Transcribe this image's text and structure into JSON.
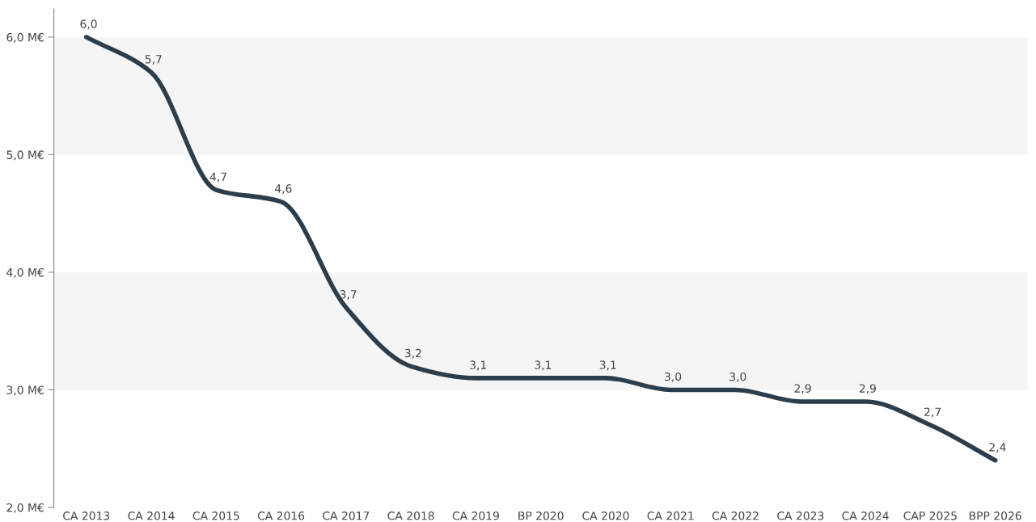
{
  "chart_data": {
    "type": "line",
    "categories": [
      "CA 2013",
      "CA 2014",
      "CA 2015",
      "CA 2016",
      "CA 2017",
      "CA 2018",
      "CA 2019",
      "BP 2020",
      "CA 2020",
      "CA 2021",
      "CA 2022",
      "CA 2023",
      "CA 2024",
      "CAP 2025",
      "BPP 2026"
    ],
    "series": [
      {
        "color": "#2c3e4c",
        "values": [
          6.0,
          5.7,
          4.7,
          4.6,
          3.7,
          3.2,
          3.1,
          3.1,
          3.1,
          3.0,
          3.0,
          2.9,
          2.9,
          2.7,
          2.4
        ],
        "value_labels": [
          "6,0",
          "5,7",
          "4,7",
          "4,6",
          "3,7",
          "3,2",
          "3,1",
          "3,1",
          "3,1",
          "3,0",
          "3,0",
          "2,9",
          "2,9",
          "2,7",
          "2,4"
        ]
      }
    ],
    "ylim": [
      2.0,
      6.24
    ],
    "yticks": [
      {
        "value": 2.0,
        "label": "2,0 M€"
      },
      {
        "value": 3.0,
        "label": "3,0 M€"
      },
      {
        "value": 4.0,
        "label": "4,0 M€"
      },
      {
        "value": 5.0,
        "label": "5,0 M€"
      },
      {
        "value": 6.0,
        "label": "6,0 M€"
      }
    ],
    "bands": [
      {
        "axis": "y",
        "from": 3.0,
        "to": 4.0,
        "color": "#f5f5f5"
      },
      {
        "axis": "y",
        "from": 5.0,
        "to": 6.0,
        "color": "#f5f5f5"
      }
    ],
    "grid": false,
    "marker": "none",
    "line_style": "solid"
  }
}
